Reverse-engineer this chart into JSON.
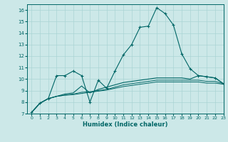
{
  "title": "",
  "xlabel": "Humidex (Indice chaleur)",
  "ylabel": "",
  "bg_color": "#cce8e8",
  "line_color": "#006666",
  "grid_color": "#aad4d4",
  "xlim": [
    -0.5,
    23
  ],
  "ylim": [
    7,
    16.5
  ],
  "xticks": [
    0,
    1,
    2,
    3,
    4,
    5,
    6,
    7,
    8,
    9,
    10,
    11,
    12,
    13,
    14,
    15,
    16,
    17,
    18,
    19,
    20,
    21,
    22,
    23
  ],
  "yticks": [
    7,
    8,
    9,
    10,
    11,
    12,
    13,
    14,
    15,
    16
  ],
  "line1_x": [
    0,
    1,
    2,
    3,
    4,
    5,
    6,
    7,
    8,
    9,
    10,
    11,
    12,
    13,
    14,
    15,
    16,
    17,
    18,
    19,
    20,
    21,
    22,
    23
  ],
  "line1_y": [
    7.1,
    7.9,
    8.3,
    10.3,
    10.3,
    10.7,
    10.3,
    8.0,
    9.9,
    9.2,
    10.7,
    12.1,
    13.0,
    14.5,
    14.6,
    16.2,
    15.7,
    14.7,
    12.2,
    10.9,
    10.3,
    10.2,
    10.1,
    9.6
  ],
  "line2_x": [
    0,
    1,
    2,
    3,
    4,
    5,
    6,
    7,
    8,
    9,
    10,
    11,
    12,
    13,
    14,
    15,
    16,
    17,
    18,
    19,
    20,
    21,
    22,
    23
  ],
  "line2_y": [
    7.1,
    7.9,
    8.3,
    8.5,
    8.7,
    8.8,
    9.4,
    8.8,
    9.1,
    9.3,
    9.5,
    9.7,
    9.8,
    9.9,
    10.0,
    10.1,
    10.1,
    10.1,
    10.1,
    10.0,
    10.3,
    10.2,
    10.1,
    9.6
  ],
  "line3_x": [
    0,
    1,
    2,
    3,
    4,
    5,
    6,
    7,
    8,
    9,
    10,
    11,
    12,
    13,
    14,
    15,
    16,
    17,
    18,
    19,
    20,
    21,
    22,
    23
  ],
  "line3_y": [
    7.1,
    7.9,
    8.3,
    8.5,
    8.6,
    8.7,
    8.85,
    8.9,
    9.0,
    9.1,
    9.3,
    9.5,
    9.6,
    9.7,
    9.8,
    9.9,
    9.9,
    9.9,
    9.9,
    9.9,
    9.9,
    9.8,
    9.8,
    9.6
  ],
  "line4_x": [
    0,
    1,
    2,
    3,
    4,
    5,
    6,
    7,
    8,
    9,
    10,
    11,
    12,
    13,
    14,
    15,
    16,
    17,
    18,
    19,
    20,
    21,
    22,
    23
  ],
  "line4_y": [
    7.1,
    7.9,
    8.3,
    8.5,
    8.6,
    8.65,
    8.75,
    8.85,
    8.95,
    9.05,
    9.2,
    9.35,
    9.45,
    9.55,
    9.65,
    9.75,
    9.75,
    9.75,
    9.75,
    9.75,
    9.75,
    9.65,
    9.65,
    9.55
  ]
}
